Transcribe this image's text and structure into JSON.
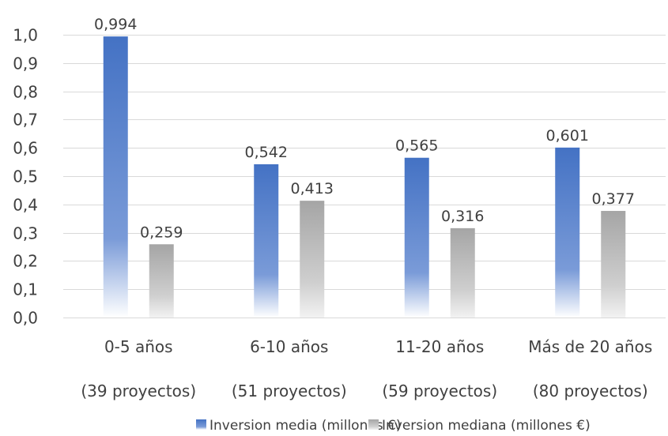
{
  "chart_data": {
    "type": "bar",
    "title": "",
    "xlabel": "",
    "ylabel": "",
    "ylim": [
      0,
      1.0
    ],
    "ytick_step": 0.1,
    "ytick_labels": [
      "0,0",
      "0,1",
      "0,2",
      "0,3",
      "0,4",
      "0,5",
      "0,6",
      "0,7",
      "0,8",
      "0,9",
      "1,0"
    ],
    "grid": true,
    "legend_position": "bottom",
    "categories": [
      {
        "label": "0-5 años",
        "sublabel": "(39 proyectos)"
      },
      {
        "label": "6-10 años",
        "sublabel": "(51 proyectos)"
      },
      {
        "label": "11-20 años",
        "sublabel": "(59 proyectos)"
      },
      {
        "label": "Más de 20 años",
        "sublabel": "(80 proyectos)"
      }
    ],
    "series": [
      {
        "name": "Inversion media (millones €)",
        "color": "#4472c4",
        "values": [
          0.994,
          0.542,
          0.565,
          0.601
        ],
        "value_labels": [
          "0,994",
          "0,542",
          "0,565",
          "0,601"
        ]
      },
      {
        "name": "Inversion mediana (millones €)",
        "color": "#a5a5a5",
        "values": [
          0.259,
          0.413,
          0.316,
          0.377
        ],
        "value_labels": [
          "0,259",
          "0,413",
          "0,316",
          "0,377"
        ]
      }
    ]
  }
}
